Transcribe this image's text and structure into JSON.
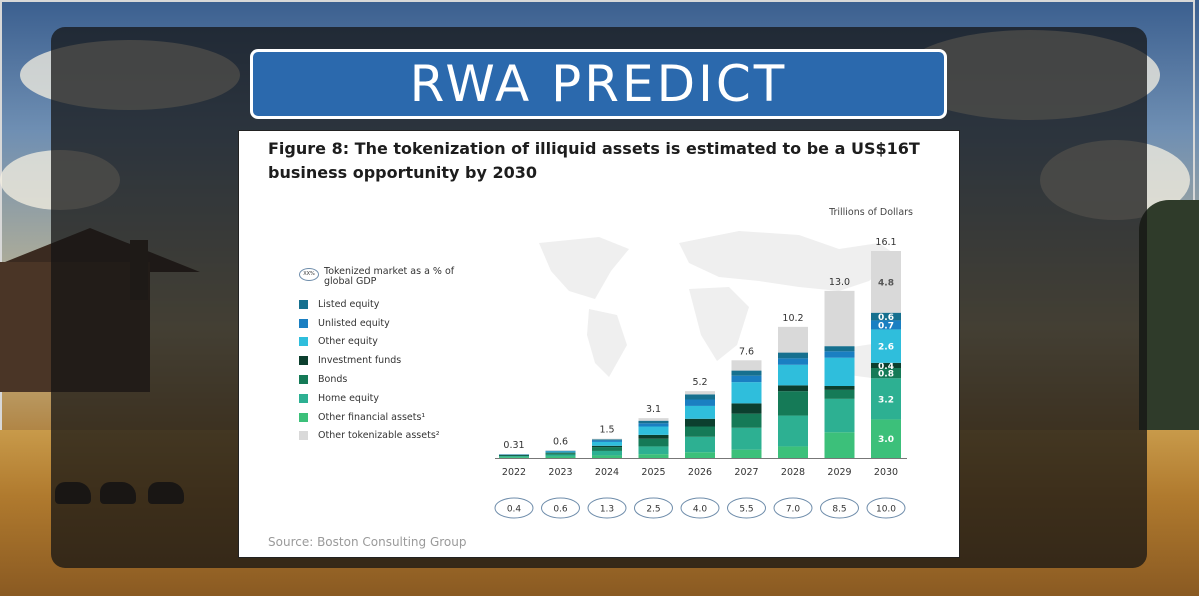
{
  "banner": {
    "title": "RWA PREDICT"
  },
  "figure": {
    "title": "Figure 8: The tokenization of illiquid assets is estimated to be a US$16T business opportunity by 2030",
    "unit_label": "Trillions of Dollars",
    "source": "Source: Boston Consulting Group",
    "gdp_legend_oval": "XX%",
    "gdp_legend_label": "Tokenized market as a % of global GDP"
  },
  "chart_data": {
    "type": "bar",
    "stacked": true,
    "title": "Figure 8: The tokenization of illiquid assets is estimated to be a US$16T business opportunity by 2030",
    "ylabel": "Trillions of Dollars",
    "categories": [
      "2022",
      "2023",
      "2024",
      "2025",
      "2026",
      "2027",
      "2028",
      "2029",
      "2030"
    ],
    "totals": [
      "0.31",
      "0.6",
      "1.5",
      "3.1",
      "5.2",
      "7.6",
      "10.2",
      "13.0",
      "16.1"
    ],
    "gdp_percent": [
      "0.4",
      "0.6",
      "1.3",
      "2.5",
      "4.0",
      "5.5",
      "7.0",
      "8.5",
      "10.0"
    ],
    "ylim": [
      0,
      16.1
    ],
    "series": [
      {
        "name": "Other financial assets¹",
        "color": "#3cc07a",
        "values": [
          0.07,
          0.12,
          0.2,
          0.3,
          0.45,
          0.65,
          0.9,
          2.0,
          3.0
        ]
      },
      {
        "name": "Home equity",
        "color": "#2db092",
        "values": [
          0.08,
          0.15,
          0.35,
          0.6,
          1.2,
          1.7,
          2.4,
          2.6,
          3.2
        ]
      },
      {
        "name": "Bonds",
        "color": "#157a57",
        "values": [
          0.06,
          0.1,
          0.3,
          0.6,
          0.8,
          1.1,
          1.9,
          0.7,
          0.8
        ]
      },
      {
        "name": "Investment funds",
        "color": "#0c3f2e",
        "values": [
          0.02,
          0.05,
          0.1,
          0.3,
          0.6,
          0.8,
          0.45,
          0.3,
          0.4
        ]
      },
      {
        "name": "Other equity",
        "color": "#2fbedc",
        "values": [
          0.04,
          0.08,
          0.3,
          0.65,
          1.0,
          1.65,
          1.6,
          2.2,
          2.6
        ]
      },
      {
        "name": "Unlisted equity",
        "color": "#1a7fc2",
        "values": [
          0.02,
          0.04,
          0.12,
          0.25,
          0.5,
          0.5,
          0.5,
          0.5,
          0.7
        ]
      },
      {
        "name": "Listed equity",
        "color": "#16708f",
        "values": [
          0.01,
          0.03,
          0.08,
          0.2,
          0.4,
          0.4,
          0.45,
          0.4,
          0.6
        ]
      },
      {
        "name": "Other tokenizable assets²",
        "color": "#d9d9d9",
        "values": [
          0.01,
          0.03,
          0.05,
          0.2,
          0.25,
          0.8,
          2.0,
          4.3,
          4.8
        ]
      }
    ],
    "legend": [
      "Listed equity",
      "Unlisted equity",
      "Other equity",
      "Investment funds",
      "Bonds",
      "Home equity",
      "Other financial assets¹",
      "Other tokenizable assets²"
    ],
    "legend_colors": [
      "#16708f",
      "#1a7fc2",
      "#2fbedc",
      "#0c3f2e",
      "#157a57",
      "#2db092",
      "#3cc07a",
      "#d9d9d9"
    ],
    "segment_labels_2030": [
      "3.0",
      "3.2",
      "0.8",
      "0.4",
      "2.6",
      "0.7",
      "0.6",
      "4.8"
    ],
    "legend_position": "left"
  }
}
